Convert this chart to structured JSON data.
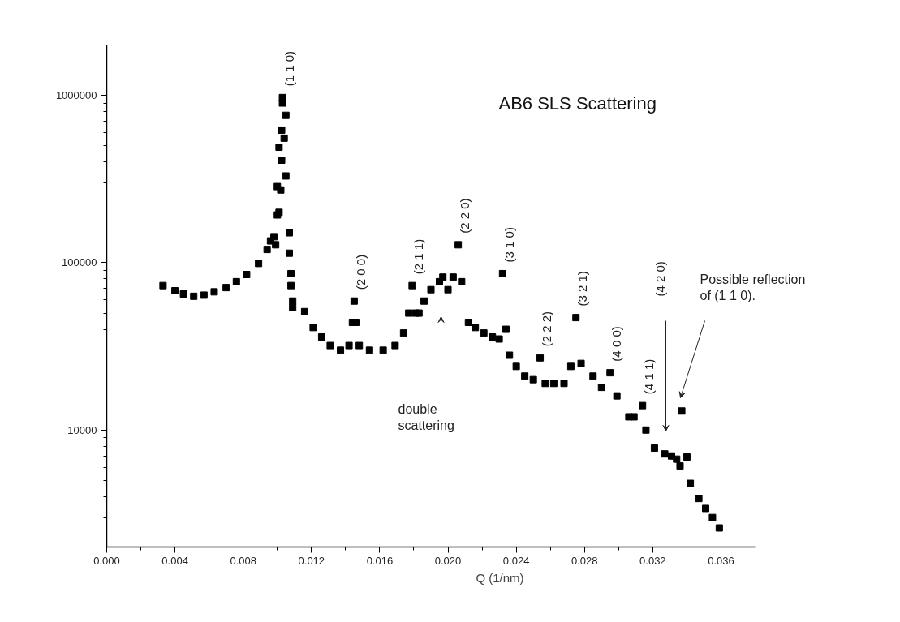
{
  "chart_data": {
    "type": "scatter",
    "title": "AB6 SLS Scattering",
    "xlabel": "Q (1/nm)",
    "log": true,
    "marker": "square",
    "color": "#000000",
    "xlim": [
      0,
      0.038
    ],
    "xticks": [
      {
        "value": 0,
        "label": "0.000"
      },
      {
        "value": 0.004,
        "label": "0.004"
      },
      {
        "value": 0.008,
        "label": "0.008"
      },
      {
        "value": 0.012,
        "label": "0.012"
      },
      {
        "value": 0.016,
        "label": "0.016"
      },
      {
        "value": 0.02,
        "label": "0.020"
      },
      {
        "value": 0.024,
        "label": "0.024"
      },
      {
        "value": 0.028,
        "label": "0.028"
      },
      {
        "value": 0.032,
        "label": "0.032"
      },
      {
        "value": 0.036,
        "label": "0.036"
      }
    ],
    "ylim": [
      2000,
      2000000
    ],
    "yticks": [
      10000,
      100000,
      1000000
    ],
    "x": [
      0.0033,
      0.004,
      0.0045,
      0.0051,
      0.0057,
      0.0063,
      0.007,
      0.0076,
      0.0082,
      0.0089,
      0.0094,
      0.0096,
      0.0098,
      0.0099,
      0.01,
      0.0101,
      0.0102,
      0.01,
      0.0105,
      0.01025,
      0.0101,
      0.0104,
      0.01025,
      0.0103,
      0.0103,
      0.0105,
      0.0107,
      0.0107,
      0.0108,
      0.0108,
      0.0109,
      0.0109,
      0.0116,
      0.0121,
      0.0126,
      0.0131,
      0.0137,
      0.0142,
      0.0144,
      0.0145,
      0.0146,
      0.0148,
      0.0154,
      0.0162,
      0.0169,
      0.0174,
      0.0177,
      0.0179,
      0.0181,
      0.0183,
      0.0186,
      0.019,
      0.0195,
      0.0197,
      0.02,
      0.0203,
      0.0206,
      0.0208,
      0.0212,
      0.0216,
      0.0221,
      0.0226,
      0.023,
      0.0232,
      0.0234,
      0.0236,
      0.024,
      0.0245,
      0.025,
      0.0254,
      0.0257,
      0.0262,
      0.0268,
      0.0272,
      0.0275,
      0.0278,
      0.0285,
      0.029,
      0.0295,
      0.0299,
      0.0306,
      0.0309,
      0.0314,
      0.0316,
      0.0321,
      0.0327,
      0.0331,
      0.0334,
      0.0336,
      0.0337,
      0.034,
      0.0342,
      0.0347,
      0.0351,
      0.0355,
      0.0359
    ],
    "values": [
      73000,
      68000,
      65000,
      63000,
      64000,
      67000,
      71000,
      77000,
      85000,
      99000,
      120000,
      135000,
      143000,
      128000,
      193000,
      200000,
      272000,
      285000,
      330000,
      410000,
      490000,
      555000,
      620000,
      900000,
      970000,
      760000,
      151000,
      114000,
      86000,
      73000,
      59000,
      54000,
      51000,
      41000,
      36000,
      32000,
      30000,
      32000,
      44000,
      59000,
      44000,
      32000,
      30000,
      30000,
      32000,
      38000,
      50000,
      73000,
      50000,
      50000,
      59000,
      69000,
      77000,
      82000,
      69000,
      82000,
      128000,
      77000,
      44000,
      41000,
      38000,
      36000,
      35000,
      86000,
      40000,
      28000,
      24000,
      21000,
      20000,
      27000,
      19000,
      19000,
      19000,
      24000,
      47000,
      25000,
      21000,
      18000,
      22000,
      16000,
      12000,
      12000,
      14000,
      10000,
      7800,
      7200,
      7000,
      6700,
      6100,
      13000,
      6900,
      4800,
      3900,
      3400,
      3000,
      2600
    ],
    "annotations": [
      {
        "text": "(1 1 0)",
        "x": 0.0103,
        "y": 970000
      },
      {
        "text": "(2 0 0)",
        "x": 0.0145,
        "y": 59000
      },
      {
        "text": "(2 1 1)",
        "x": 0.0179,
        "y": 73000
      },
      {
        "text": "(2 2 0)",
        "x": 0.0206,
        "y": 128000
      },
      {
        "text": "(3 1 0)",
        "x": 0.0232,
        "y": 86000
      },
      {
        "text": "(2 2 2)",
        "x": 0.0254,
        "y": 27000
      },
      {
        "text": "(3 2 1)",
        "x": 0.0275,
        "y": 47000
      },
      {
        "text": "(4 0 0)",
        "x": 0.0295,
        "y": 22000
      },
      {
        "text": "(4 1 1)",
        "x": 0.0314,
        "y": 14000
      },
      "(4 2 0)",
      "double\nscattering",
      "Possible reflection\nof (1 1 0)."
    ]
  }
}
